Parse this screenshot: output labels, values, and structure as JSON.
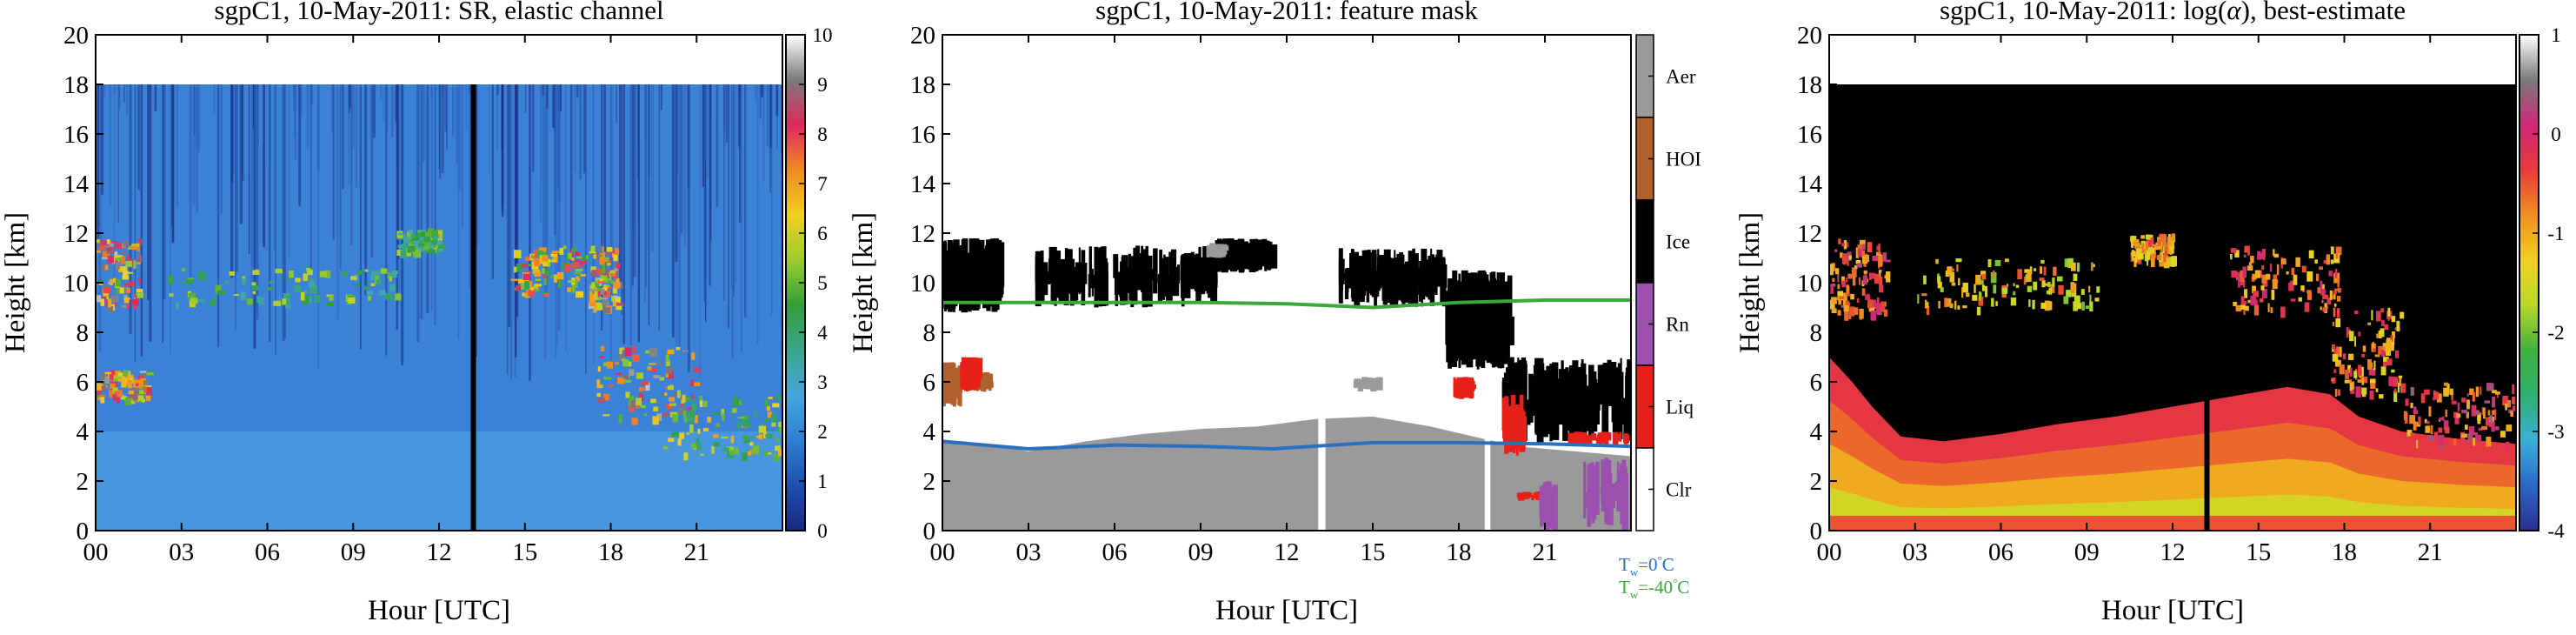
{
  "chart_data": [
    {
      "type": "heatmap",
      "title": "sgpC1, 10-May-2011: SR, elastic channel",
      "xlabel": "Hour [UTC]",
      "ylabel": "Height [km]",
      "xlim": [
        0,
        24
      ],
      "ylim": [
        0,
        20
      ],
      "x_ticks": [
        "00",
        "03",
        "06",
        "09",
        "12",
        "15",
        "18",
        "21"
      ],
      "x_tick_values": [
        0,
        3,
        6,
        9,
        12,
        15,
        18,
        21
      ],
      "y_ticks": [
        0,
        2,
        4,
        6,
        8,
        10,
        12,
        14,
        16,
        18,
        20
      ],
      "data_top_km": 18,
      "colorbar": {
        "min": 0,
        "max": 10,
        "ticks": [
          0,
          1,
          2,
          3,
          4,
          5,
          6,
          7,
          8,
          9,
          10
        ],
        "colors": [
          "#1a2a80",
          "#1d4fb0",
          "#2f7fd0",
          "#45a7dd",
          "#3aa58a",
          "#2f9f3a",
          "#9ccc30",
          "#f0d020",
          "#f08a20",
          "#e02860",
          "#7a7a7a",
          "#ffffff"
        ]
      },
      "background_color": "#3b82d6",
      "missing_data_hour": 13.2,
      "clouds": [
        {
          "x0": 0.0,
          "x1": 1.5,
          "y0": 9.0,
          "y1": 11.8,
          "value": 8
        },
        {
          "x0": 0.0,
          "x1": 1.8,
          "y0": 5.3,
          "y1": 6.5,
          "value": 8
        },
        {
          "x0": 2.5,
          "x1": 10.5,
          "y0": 9.2,
          "y1": 10.6,
          "value": 5
        },
        {
          "x0": 10.5,
          "x1": 12.0,
          "y0": 11.3,
          "y1": 12.2,
          "value": 5
        },
        {
          "x0": 14.5,
          "x1": 17.0,
          "y0": 9.5,
          "y1": 11.5,
          "value": 7
        },
        {
          "x0": 17.2,
          "x1": 18.2,
          "y0": 9.0,
          "y1": 11.5,
          "value": 8
        },
        {
          "x0": 17.5,
          "x1": 21.0,
          "y0": 4.5,
          "y1": 7.5,
          "value": 8
        },
        {
          "x0": 19.8,
          "x1": 23.9,
          "y0": 3.0,
          "y1": 5.5,
          "value": 6
        }
      ]
    },
    {
      "type": "heatmap",
      "title": "sgpC1, 10-May-2011: feature mask",
      "xlabel": "Hour [UTC]",
      "ylabel": "Height [km]",
      "xlim": [
        0,
        24
      ],
      "ylim": [
        0,
        20
      ],
      "x_ticks": [
        "00",
        "03",
        "06",
        "09",
        "12",
        "15",
        "18",
        "21"
      ],
      "x_tick_values": [
        0,
        3,
        6,
        9,
        12,
        15,
        18,
        21
      ],
      "y_ticks": [
        0,
        2,
        4,
        6,
        8,
        10,
        12,
        14,
        16,
        18,
        20
      ],
      "classes": [
        {
          "label": "Aer",
          "color": "#9a9a9a"
        },
        {
          "label": "HOI",
          "color": "#b0602a"
        },
        {
          "label": "Ice",
          "color": "#000000"
        },
        {
          "label": "Rn",
          "color": "#9b50b0"
        },
        {
          "label": "Liq",
          "color": "#e8201a"
        },
        {
          "label": "Clr",
          "color": "#ffffff"
        }
      ],
      "aerosol_top_km": [
        [
          0,
          3.6
        ],
        [
          1,
          3.5
        ],
        [
          2,
          3.4
        ],
        [
          3,
          3.2
        ],
        [
          5,
          3.6
        ],
        [
          7,
          3.9
        ],
        [
          9,
          4.1
        ],
        [
          11,
          4.2
        ],
        [
          13,
          4.5
        ],
        [
          15,
          4.6
        ],
        [
          17,
          4.2
        ],
        [
          18.5,
          3.8
        ],
        [
          20,
          3.4
        ],
        [
          22,
          3.2
        ],
        [
          24,
          3.0
        ]
      ],
      "aerosol_gap_hours": [
        [
          13.1,
          13.35
        ],
        [
          18.9,
          19.1
        ]
      ],
      "features": [
        {
          "class": "Ice",
          "x0": 0.0,
          "x1": 2.0,
          "y0": 8.8,
          "y1": 11.8
        },
        {
          "class": "Ice",
          "x0": 3.2,
          "x1": 9.5,
          "y0": 9.0,
          "y1": 11.5
        },
        {
          "class": "Ice",
          "x0": 9.5,
          "x1": 11.5,
          "y0": 10.4,
          "y1": 11.8
        },
        {
          "class": "Ice",
          "x0": 13.8,
          "x1": 17.5,
          "y0": 9.0,
          "y1": 11.4
        },
        {
          "class": "Ice",
          "x0": 17.5,
          "x1": 19.7,
          "y0": 6.5,
          "y1": 10.5
        },
        {
          "class": "Ice",
          "x0": 19.5,
          "x1": 23.9,
          "y0": 3.5,
          "y1": 7.0
        },
        {
          "class": "HOI",
          "x0": 0.0,
          "x1": 0.6,
          "y0": 5.0,
          "y1": 6.8
        },
        {
          "class": "HOI",
          "x0": 0.9,
          "x1": 1.6,
          "y0": 5.6,
          "y1": 6.4
        },
        {
          "class": "Liq",
          "x0": 0.6,
          "x1": 1.2,
          "y0": 5.6,
          "y1": 7.0
        },
        {
          "class": "Liq",
          "x0": 17.8,
          "x1": 18.4,
          "y0": 5.3,
          "y1": 6.2
        },
        {
          "class": "Liq",
          "x0": 19.5,
          "x1": 20.2,
          "y0": 3.0,
          "y1": 5.5
        },
        {
          "class": "Liq",
          "x0": 20.0,
          "x1": 21.0,
          "y0": 1.2,
          "y1": 1.6
        },
        {
          "class": "Liq",
          "x0": 21.8,
          "x1": 23.9,
          "y0": 3.4,
          "y1": 4.0
        },
        {
          "class": "Rn",
          "x0": 20.8,
          "x1": 21.3,
          "y0": 0.0,
          "y1": 2.0
        },
        {
          "class": "Rn",
          "x0": 22.3,
          "x1": 23.9,
          "y0": 0.0,
          "y1": 3.0
        },
        {
          "class": "Aer",
          "x0": 14.3,
          "x1": 15.3,
          "y0": 5.6,
          "y1": 6.2
        },
        {
          "class": "Aer",
          "x0": 9.2,
          "x1": 9.8,
          "y0": 11.0,
          "y1": 11.6
        }
      ],
      "lines": [
        {
          "label": "T_w=0 °C",
          "color": "#2a6fc0",
          "points": [
            [
              0,
              3.6
            ],
            [
              3,
              3.3
            ],
            [
              6,
              3.45
            ],
            [
              9,
              3.4
            ],
            [
              11.5,
              3.3
            ],
            [
              15,
              3.55
            ],
            [
              18,
              3.55
            ],
            [
              21,
              3.5
            ],
            [
              24,
              3.4
            ]
          ]
        },
        {
          "label": "T_w=-40 °C",
          "color": "#3aa83a",
          "points": [
            [
              0,
              9.2
            ],
            [
              6,
              9.2
            ],
            [
              9,
              9.2
            ],
            [
              12,
              9.15
            ],
            [
              15,
              9.0
            ],
            [
              18,
              9.2
            ],
            [
              21,
              9.3
            ],
            [
              24,
              9.3
            ]
          ]
        }
      ],
      "legend_labels": {
        "t0_base": "T",
        "t0_sub": "w",
        "t0_rest": "=0",
        "t0_unit": "C",
        "t40_base": "T",
        "t40_sub": "w",
        "t40_rest": "=-40",
        "t40_unit": "C",
        "degree": "°"
      }
    },
    {
      "type": "heatmap",
      "title_prefix": "sgpC1, 10-May-2011: log(",
      "title_symbol": "α",
      "title_suffix": "), best-estimate",
      "xlabel": "Hour [UTC]",
      "ylabel": "Height [km]",
      "xlim": [
        0,
        24
      ],
      "ylim": [
        0,
        20
      ],
      "x_ticks": [
        "00",
        "03",
        "06",
        "09",
        "12",
        "15",
        "18",
        "21"
      ],
      "x_tick_values": [
        0,
        3,
        6,
        9,
        12,
        15,
        18,
        21
      ],
      "y_ticks": [
        0,
        2,
        4,
        6,
        8,
        10,
        12,
        14,
        16,
        18,
        20
      ],
      "data_top_km": 18,
      "background_color": "#000000",
      "missing_data_hour": 13.2,
      "colorbar": {
        "min": -4,
        "max": 1,
        "ticks": [
          -4,
          -3,
          -2,
          -1,
          0,
          1
        ],
        "colors": [
          "#2a2f8f",
          "#2b68c8",
          "#3ab0d8",
          "#2fb070",
          "#40b040",
          "#b8d828",
          "#f0d020",
          "#f09020",
          "#e83a3a",
          "#d02878",
          "#7a7a7a",
          "#ffffff"
        ]
      },
      "boundary_layer_top_km": [
        [
          0,
          7.0
        ],
        [
          0.8,
          6.0
        ],
        [
          1.5,
          5.0
        ],
        [
          2.5,
          3.8
        ],
        [
          4,
          3.6
        ],
        [
          6,
          3.9
        ],
        [
          8,
          4.3
        ],
        [
          10,
          4.6
        ],
        [
          12,
          5.0
        ],
        [
          14,
          5.4
        ],
        [
          16,
          5.8
        ],
        [
          17.5,
          5.5
        ],
        [
          18.5,
          4.6
        ],
        [
          20,
          4.0
        ],
        [
          22,
          3.7
        ],
        [
          24,
          3.5
        ]
      ],
      "clouds": [
        {
          "x0": 0.0,
          "x1": 2.0,
          "y0": 8.8,
          "y1": 11.8,
          "value": -0.5
        },
        {
          "x0": 3.0,
          "x1": 9.5,
          "y0": 9.0,
          "y1": 11.0,
          "value": -1.2
        },
        {
          "x0": 10.5,
          "x1": 12.0,
          "y0": 11.0,
          "y1": 12.0,
          "value": -1.0
        },
        {
          "x0": 14.0,
          "x1": 17.8,
          "y0": 9.0,
          "y1": 11.5,
          "value": -0.6
        },
        {
          "x0": 17.5,
          "x1": 20.0,
          "y0": 5.5,
          "y1": 9.0,
          "value": -0.8
        },
        {
          "x0": 20.0,
          "x1": 23.9,
          "y0": 3.5,
          "y1": 6.0,
          "value": -0.4
        }
      ]
    }
  ]
}
